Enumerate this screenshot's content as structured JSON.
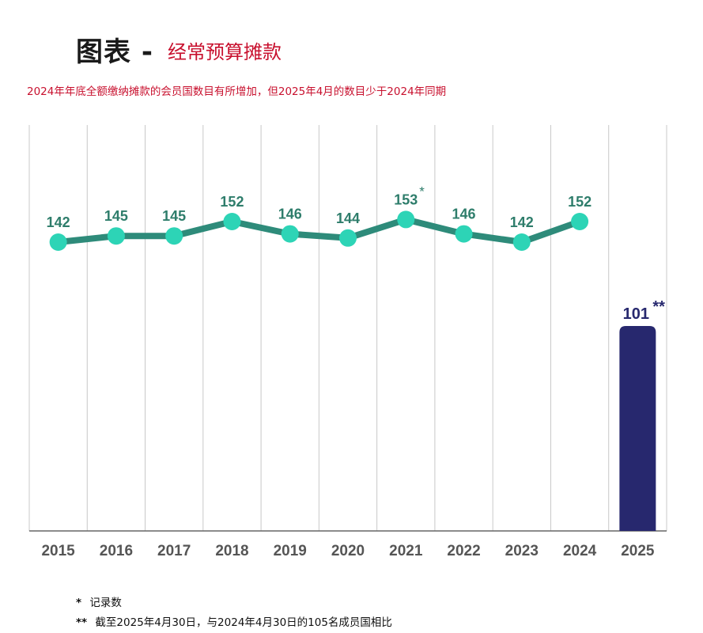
{
  "header": {
    "title_main": "图表 -",
    "title_sub": "经常预算摊款",
    "subtitle": "2024年年底全额缴纳摊款的会员国数目有所增加，但2025年4月的数目少于2024年同期"
  },
  "footnotes": [
    {
      "mark": "*",
      "text": "记录数"
    },
    {
      "mark": "**",
      "text": "截至2025年4月30日，与2024年4月30日的105名成员国相比"
    }
  ],
  "colors": {
    "line": "#2e8b7a",
    "marker": "#2dd4b6",
    "line_label": "#2e7d6b",
    "bar": "#27286e",
    "bar_label": "#27286e",
    "grid": "#c8c8c8",
    "axis": "#666666",
    "tick_label": "#555555",
    "title_red": "#c8102e"
  },
  "chart_data": {
    "type": "line",
    "categories": [
      "2015",
      "2016",
      "2017",
      "2018",
      "2019",
      "2020",
      "2021",
      "2022",
      "2023",
      "2024",
      "2025"
    ],
    "series": [
      {
        "type": "line",
        "x": [
          "2015",
          "2016",
          "2017",
          "2018",
          "2019",
          "2020",
          "2021",
          "2022",
          "2023",
          "2024"
        ],
        "values": [
          142,
          145,
          145,
          152,
          146,
          144,
          153,
          146,
          142,
          152
        ],
        "labels": [
          "142",
          "145",
          "145",
          "152",
          "146",
          "144",
          "153",
          "146",
          "142",
          "152"
        ],
        "label_suffix": [
          "",
          "",
          "",
          "",
          "",
          "",
          "*",
          "",
          "",
          ""
        ]
      },
      {
        "type": "bar",
        "x": [
          "2025"
        ],
        "values": [
          101
        ],
        "labels": [
          "101"
        ],
        "label_suffix": [
          "**"
        ]
      }
    ],
    "grid": "vertical",
    "legend": "none"
  }
}
